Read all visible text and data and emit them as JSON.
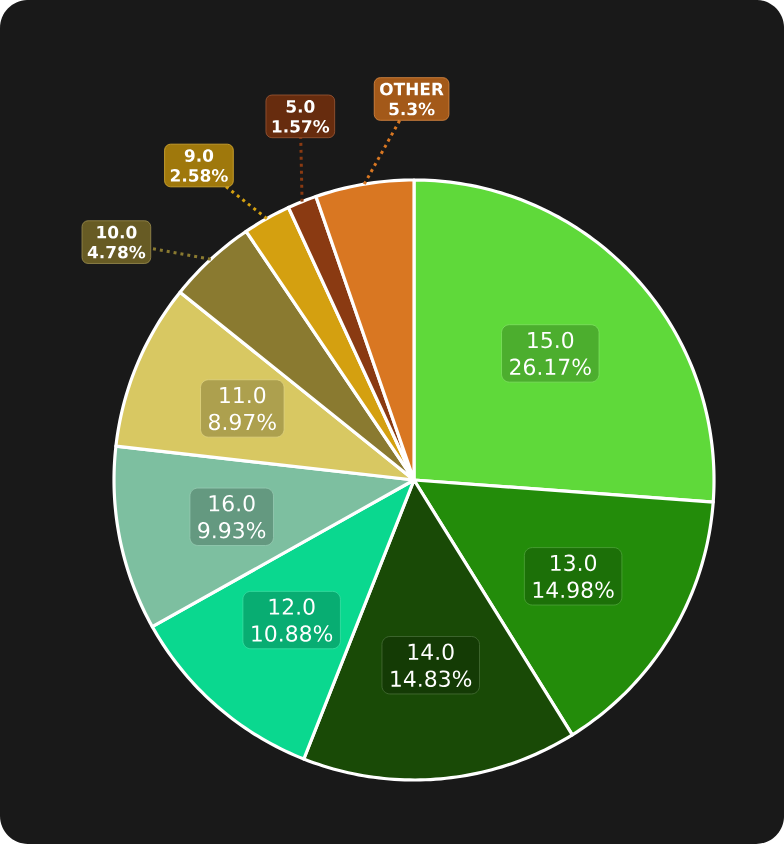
{
  "chart_data": {
    "type": "pie",
    "categories": [
      "15.0",
      "13.0",
      "14.0",
      "12.0",
      "16.0",
      "11.0",
      "10.0",
      "9.0",
      "5.0",
      "OTHER"
    ],
    "values": [
      26.17,
      14.98,
      14.83,
      10.88,
      9.93,
      8.97,
      4.78,
      2.58,
      1.57,
      5.3
    ],
    "value_labels": [
      "26.17%",
      "14.98%",
      "14.83%",
      "10.88%",
      "9.93%",
      "8.97%",
      "4.78%",
      "2.58%",
      "1.57%",
      "5.3%"
    ],
    "colors": [
      "#5fd93a",
      "#238c0a",
      "#194a06",
      "#0ad88f",
      "#7dbfa0",
      "#d8c862",
      "#8a7a30",
      "#d4a010",
      "#8a3a12",
      "#d97722"
    ]
  }
}
